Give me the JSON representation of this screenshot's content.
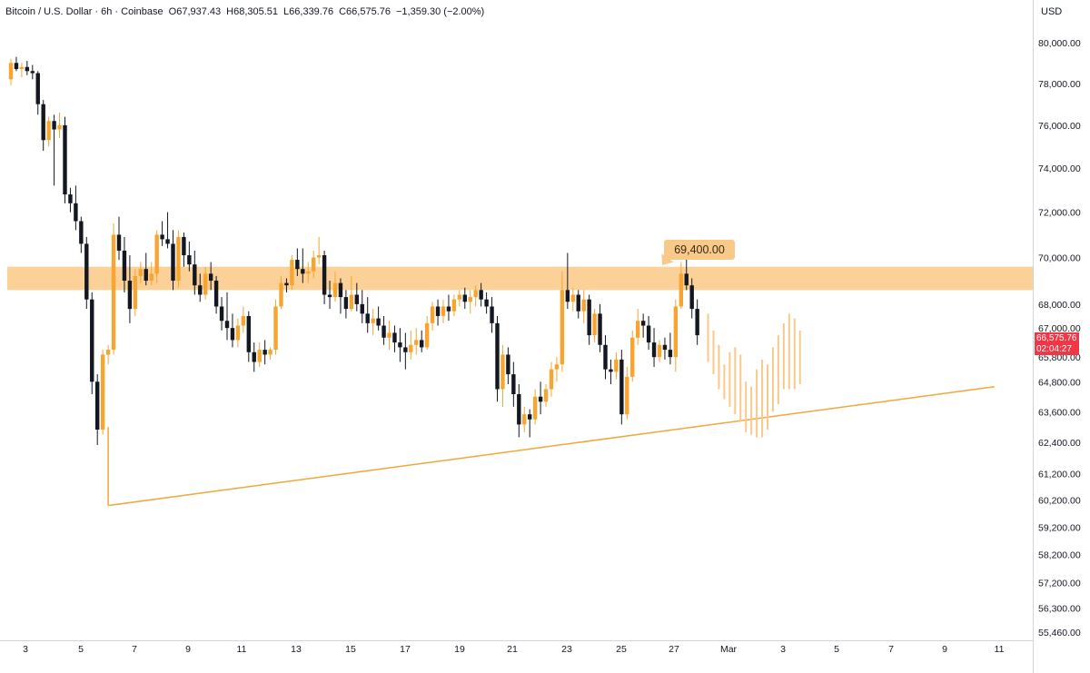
{
  "header": {
    "symbol": "Bitcoin / U.S. Dollar · 6h · Coinbase",
    "open_label": "O",
    "open": "67,937.43",
    "high_label": "H",
    "high": "68,305.51",
    "low_label": "L",
    "low": "66,339.76",
    "close_label": "C",
    "close": "66,575.76",
    "change": "−1,359.30 (−2.00%)"
  },
  "currency": "USD",
  "price_tag": {
    "price": "66,575.76",
    "countdown": "02:04:27"
  },
  "annotation": {
    "label": "69,400.00"
  },
  "colors": {
    "up": "#f7a530",
    "down": "#131722",
    "zone": "#fbcc8c",
    "trendline": "#f0a73c",
    "projection": "#f7c98a",
    "price_tag": "#f23645"
  },
  "chart_data": {
    "type": "candlestick",
    "title": "Bitcoin / U.S. Dollar · 6h · Coinbase",
    "y_scale": "log",
    "ylim": [
      55000,
      82000
    ],
    "y_ticks": [
      80000,
      78000,
      76000,
      74000,
      72000,
      70000,
      68000,
      67000,
      65800,
      64800,
      63600,
      62400,
      61200,
      60200,
      59200,
      58200,
      57200,
      56300,
      55460
    ],
    "y_tick_labels": [
      "80,000.00",
      "78,000.00",
      "76,000.00",
      "74,000.00",
      "72,000.00",
      "70,000.00",
      "68,000.00",
      "67,000.00",
      "65,800.00",
      "64,800.00",
      "63,600.00",
      "62,400.00",
      "61,200.00",
      "60,200.00",
      "59,200.00",
      "58,200.00",
      "57,200.00",
      "56,300.00",
      "55,460.00"
    ],
    "x_tick_labels": [
      "3",
      "5",
      "7",
      "9",
      "11",
      "13",
      "15",
      "17",
      "19",
      "21",
      "23",
      "25",
      "27",
      "Mar",
      "3",
      "5",
      "7",
      "9",
      "11"
    ],
    "resistance_zone": [
      68600,
      69600
    ],
    "support_trendline": [
      {
        "bar": 18,
        "price": 60000
      },
      {
        "bar": 182,
        "price": 64600
      }
    ],
    "candles": [
      [
        78200,
        79200,
        77900,
        79000
      ],
      [
        79000,
        79300,
        78600,
        78700
      ],
      [
        78700,
        79000,
        78300,
        78800
      ],
      [
        78800,
        79100,
        78400,
        78600
      ],
      [
        78600,
        78900,
        78200,
        78500
      ],
      [
        78500,
        78600,
        76500,
        77000
      ],
      [
        77000,
        77200,
        74800,
        75300
      ],
      [
        75300,
        76400,
        75000,
        76200
      ],
      [
        76200,
        76500,
        73200,
        75800
      ],
      [
        75800,
        76600,
        75400,
        76000
      ],
      [
        76000,
        76400,
        72400,
        72800
      ],
      [
        72800,
        73100,
        72000,
        72400
      ],
      [
        72400,
        73200,
        71200,
        71600
      ],
      [
        71600,
        71800,
        70200,
        70600
      ],
      [
        70600,
        70900,
        67800,
        68200
      ],
      [
        68200,
        68500,
        64300,
        64800
      ],
      [
        64800,
        65100,
        62300,
        62900
      ],
      [
        62900,
        66100,
        62700,
        65900
      ],
      [
        65900,
        66300,
        65500,
        66100
      ],
      [
        66100,
        71500,
        65900,
        71000
      ],
      [
        71000,
        71800,
        69900,
        70300
      ],
      [
        70300,
        70900,
        68500,
        69000
      ],
      [
        69000,
        70100,
        67200,
        67800
      ],
      [
        67800,
        69500,
        67500,
        69200
      ],
      [
        69200,
        69800,
        68900,
        69500
      ],
      [
        69500,
        70200,
        68800,
        69000
      ],
      [
        69000,
        69800,
        68800,
        69300
      ],
      [
        69300,
        71200,
        68900,
        71000
      ],
      [
        71000,
        71600,
        70500,
        70800
      ],
      [
        70800,
        72000,
        70400,
        70600
      ],
      [
        70600,
        71200,
        68600,
        69000
      ],
      [
        69000,
        71200,
        68700,
        70900
      ],
      [
        70900,
        71100,
        69600,
        70100
      ],
      [
        70100,
        70700,
        69400,
        69700
      ],
      [
        69700,
        70300,
        68400,
        68800
      ],
      [
        68800,
        69300,
        68100,
        68400
      ],
      [
        68400,
        69600,
        68200,
        69300
      ],
      [
        69300,
        69800,
        68600,
        69000
      ],
      [
        69000,
        69200,
        67600,
        67900
      ],
      [
        67900,
        68300,
        66900,
        67300
      ],
      [
        67300,
        68500,
        66500,
        67000
      ],
      [
        67000,
        67600,
        66200,
        66500
      ],
      [
        66500,
        67400,
        66200,
        67100
      ],
      [
        67100,
        67900,
        66800,
        67500
      ],
      [
        67500,
        67700,
        65600,
        66000
      ],
      [
        66000,
        66400,
        65200,
        65600
      ],
      [
        65600,
        66400,
        65400,
        66100
      ],
      [
        66100,
        66500,
        65500,
        65900
      ],
      [
        65900,
        66200,
        65700,
        66100
      ],
      [
        66100,
        68200,
        65900,
        67900
      ],
      [
        67900,
        69200,
        67800,
        68900
      ],
      [
        68900,
        69100,
        68500,
        68800
      ],
      [
        68800,
        70100,
        68600,
        69900
      ],
      [
        69900,
        70400,
        69200,
        69500
      ],
      [
        69500,
        70400,
        68900,
        69300
      ],
      [
        69300,
        69800,
        68900,
        69400
      ],
      [
        69400,
        70300,
        69100,
        70000
      ],
      [
        70000,
        70900,
        69700,
        70100
      ],
      [
        70100,
        70300,
        68000,
        68400
      ],
      [
        68400,
        69000,
        67800,
        68300
      ],
      [
        68300,
        69400,
        68100,
        68900
      ],
      [
        68900,
        69100,
        67600,
        68300
      ],
      [
        68300,
        68600,
        67400,
        67800
      ],
      [
        67800,
        69200,
        67700,
        68400
      ],
      [
        68400,
        68900,
        67700,
        68000
      ],
      [
        68000,
        68600,
        67200,
        67600
      ],
      [
        67600,
        68300,
        66800,
        67200
      ],
      [
        67200,
        67800,
        66700,
        67400
      ],
      [
        67400,
        67900,
        66900,
        67100
      ],
      [
        67100,
        67500,
        66300,
        66600
      ],
      [
        66600,
        67300,
        66100,
        66800
      ],
      [
        66800,
        67100,
        66000,
        66400
      ],
      [
        66400,
        67000,
        65600,
        66200
      ],
      [
        66200,
        66800,
        65300,
        66000
      ],
      [
        66000,
        66900,
        65700,
        66300
      ],
      [
        66300,
        67000,
        65900,
        66500
      ],
      [
        66500,
        66900,
        66000,
        66200
      ],
      [
        66200,
        67500,
        66100,
        67200
      ],
      [
        67200,
        68100,
        66900,
        67900
      ],
      [
        67900,
        68200,
        67100,
        67500
      ],
      [
        67500,
        68200,
        67200,
        67900
      ],
      [
        67900,
        68400,
        67300,
        67700
      ],
      [
        67700,
        68400,
        67500,
        68200
      ],
      [
        68200,
        68600,
        67900,
        68400
      ],
      [
        68400,
        68700,
        67800,
        68100
      ],
      [
        68100,
        68600,
        67600,
        68300
      ],
      [
        68300,
        68800,
        67900,
        68600
      ],
      [
        68600,
        68900,
        67900,
        68200
      ],
      [
        68200,
        68500,
        67600,
        67900
      ],
      [
        67900,
        68300,
        66800,
        67200
      ],
      [
        67200,
        67500,
        64000,
        64500
      ],
      [
        64500,
        66300,
        63800,
        65900
      ],
      [
        65900,
        66200,
        64700,
        65100
      ],
      [
        65100,
        65600,
        63800,
        64300
      ],
      [
        64300,
        64700,
        62600,
        63100
      ],
      [
        63100,
        63800,
        62800,
        63500
      ],
      [
        63500,
        63700,
        62600,
        63300
      ],
      [
        63300,
        64500,
        63100,
        64200
      ],
      [
        64200,
        64800,
        63500,
        64000
      ],
      [
        64000,
        64700,
        63800,
        64500
      ],
      [
        64500,
        65600,
        64200,
        65300
      ],
      [
        65300,
        65800,
        64800,
        65500
      ],
      [
        65500,
        69400,
        65200,
        68600
      ],
      [
        68600,
        70200,
        67800,
        68100
      ],
      [
        68100,
        68700,
        67700,
        68400
      ],
      [
        68400,
        68600,
        67400,
        67700
      ],
      [
        67700,
        68600,
        67200,
        68200
      ],
      [
        68200,
        68400,
        66300,
        66700
      ],
      [
        66700,
        67800,
        66400,
        67600
      ],
      [
        67600,
        68000,
        66000,
        66300
      ],
      [
        66300,
        66700,
        64900,
        65300
      ],
      [
        65300,
        65700,
        64700,
        65200
      ],
      [
        65200,
        66000,
        64900,
        65700
      ],
      [
        65700,
        66100,
        63100,
        63500
      ],
      [
        63500,
        65400,
        63300,
        65000
      ],
      [
        65000,
        66900,
        64800,
        66600
      ],
      [
        66600,
        67800,
        66300,
        67300
      ],
      [
        67300,
        67600,
        66600,
        67100
      ],
      [
        67100,
        67500,
        66100,
        66400
      ],
      [
        66400,
        67000,
        65400,
        65800
      ],
      [
        65800,
        66500,
        65600,
        66300
      ],
      [
        66300,
        66600,
        65700,
        66100
      ],
      [
        66100,
        66800,
        65500,
        65800
      ],
      [
        65800,
        68200,
        65200,
        67900
      ],
      [
        67900,
        69800,
        67800,
        69300
      ],
      [
        69300,
        70100,
        68600,
        68800
      ],
      [
        68800,
        69100,
        67400,
        67800
      ],
      [
        67800,
        68200,
        66300,
        66700
      ]
    ],
    "projection": [
      [
        66700,
        67600,
        65600
      ],
      [
        65600,
        66900,
        65100
      ],
      [
        65100,
        66300,
        64500
      ],
      [
        64500,
        65500,
        64100
      ],
      [
        64100,
        66000,
        63800
      ],
      [
        63800,
        66200,
        63500
      ],
      [
        63500,
        65900,
        63200
      ],
      [
        63200,
        64800,
        62800
      ],
      [
        62800,
        64600,
        62700
      ],
      [
        62700,
        65300,
        62600
      ],
      [
        62600,
        65700,
        62900
      ],
      [
        62900,
        65500,
        63600
      ],
      [
        63600,
        66200,
        63900
      ],
      [
        63900,
        66700,
        64500
      ],
      [
        64500,
        67200,
        64800
      ],
      [
        64800,
        67600,
        64500
      ],
      [
        64500,
        67400,
        64700
      ],
      [
        64700,
        66900,
        64900
      ]
    ]
  }
}
